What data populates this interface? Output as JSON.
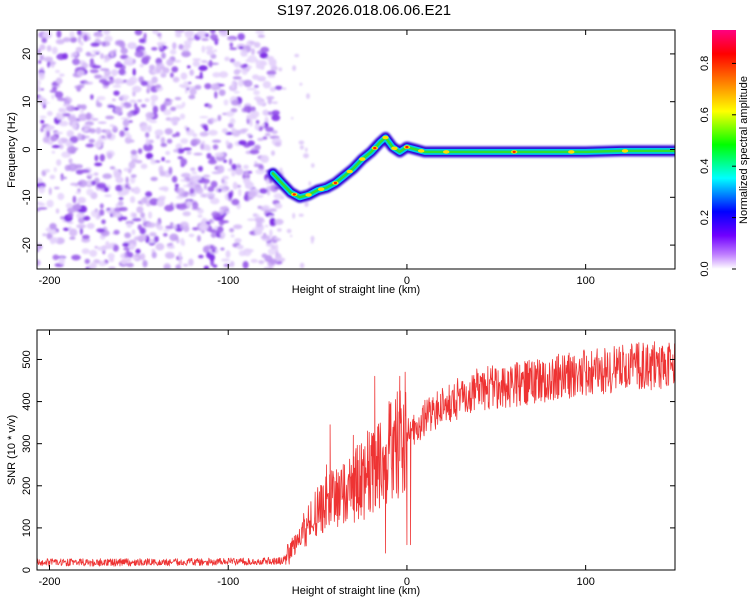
{
  "title": "S197.2026.018.06.06.E21",
  "chart_data": [
    {
      "type": "heatmap",
      "name": "spectrogram",
      "xlabel": "Height of straight line (km)",
      "ylabel": "Frequency (Hz)",
      "xlim": [
        -207,
        150
      ],
      "ylim": [
        -25,
        25
      ],
      "xticks": [
        "-200",
        "-100",
        "0",
        "100"
      ],
      "yticks": [
        "-20",
        "-10",
        "0",
        "10",
        "20"
      ],
      "noise_region_x": [
        -207,
        -75
      ],
      "ridge": {
        "x": [
          -75,
          -70,
          -65,
          -60,
          -55,
          -50,
          -45,
          -40,
          -35,
          -30,
          -25,
          -20,
          -15,
          -12,
          -8,
          -4,
          0,
          5,
          10,
          20,
          40,
          60,
          80,
          100,
          120,
          150
        ],
        "y": [
          -5,
          -7,
          -9,
          -10,
          -9.5,
          -8.5,
          -8,
          -7,
          -5.5,
          -4,
          -2,
          -0.5,
          1.5,
          2.5,
          0.5,
          -0.5,
          0.5,
          0,
          -0.5,
          -0.5,
          -0.5,
          -0.5,
          -0.5,
          -0.5,
          -0.3,
          -0.3
        ]
      },
      "peak_marks_x": [
        -63,
        -55,
        -48,
        -40,
        -32,
        -25,
        -18,
        -12,
        -7,
        0,
        8,
        22,
        60,
        92,
        122
      ]
    },
    {
      "type": "colorbar",
      "name": "colorbar",
      "label": "Normalized spectral amplitude",
      "range": [
        0,
        0.93
      ],
      "ticks": [
        "0.0",
        "0.2",
        "0.4",
        "0.6",
        "0.8"
      ],
      "colors": [
        "#ffffff",
        "#c080ff",
        "#7000ff",
        "#0000ff",
        "#00ffff",
        "#00ff00",
        "#ffff00",
        "#ff8000",
        "#ff0000",
        "#ff0080"
      ]
    },
    {
      "type": "line",
      "name": "snr",
      "xlabel": "Height of straight line (km)",
      "ylabel": "SNR (10 * v/v)",
      "xlim": [
        -207,
        150
      ],
      "ylim": [
        0,
        570
      ],
      "xticks": [
        "-200",
        "-100",
        "0",
        "100"
      ],
      "yticks": [
        "0",
        "100",
        "200",
        "300",
        "400",
        "500"
      ],
      "color": "#ee3333",
      "trend": {
        "x": [
          -207,
          -150,
          -100,
          -70,
          -65,
          -60,
          -50,
          -40,
          -30,
          -20,
          -10,
          0,
          10,
          20,
          40,
          60,
          80,
          100,
          120,
          150
        ],
        "y": [
          18,
          18,
          20,
          22,
          40,
          80,
          140,
          170,
          200,
          230,
          270,
          320,
          360,
          390,
          430,
          440,
          455,
          470,
          480,
          490
        ]
      },
      "spikes": [
        {
          "x": -45,
          "y": 250
        },
        {
          "x": -43,
          "y": 345
        },
        {
          "x": -30,
          "y": 320
        },
        {
          "x": -22,
          "y": 330
        },
        {
          "x": -18,
          "y": 460
        },
        {
          "x": -12,
          "y": 40
        },
        {
          "x": -10,
          "y": 400
        },
        {
          "x": -4,
          "y": 460
        },
        {
          "x": -1,
          "y": 470
        },
        {
          "x": 0,
          "y": 60
        },
        {
          "x": 2,
          "y": 60
        }
      ]
    }
  ]
}
